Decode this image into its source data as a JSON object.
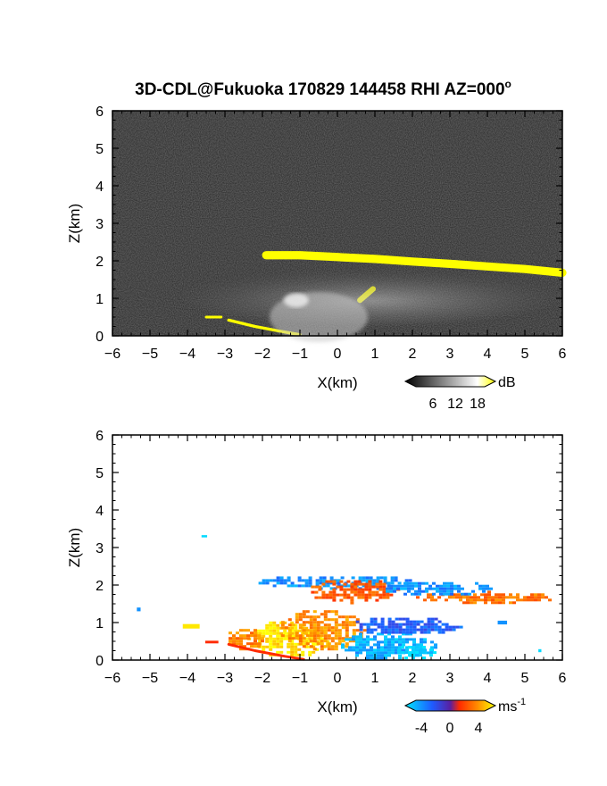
{
  "title": "3D-CDL@Fukuoka 170829 144458 RHI AZ=000",
  "title_superscript": "o",
  "colors": {
    "panel1_background": "#202020",
    "highlight_yellow": "#ffff00",
    "velocity_blue": "#1e5bff",
    "velocity_red": "#ff2a00",
    "velocity_orange": "#ff8c00",
    "velocity_cyan": "#00e5ff"
  },
  "chart_data": [
    {
      "type": "heatmap",
      "name_hint": "intensity",
      "xlabel": "X(km)",
      "ylabel": "Z(km)",
      "xlim": [
        -6,
        6
      ],
      "ylim": [
        0,
        6
      ],
      "xticks": [
        "-6",
        "-5",
        "-4",
        "-3",
        "-2",
        "-1",
        "0",
        "1",
        "2",
        "3",
        "4",
        "5",
        "6"
      ],
      "yticks": [
        "0",
        "1",
        "2",
        "3",
        "4",
        "5",
        "6"
      ],
      "colorbar": {
        "unit": "dB",
        "ticks": [
          "6",
          "12",
          "18"
        ],
        "range": [
          0,
          20
        ],
        "colors": [
          "#000000",
          "#ffffff",
          "#ffff00"
        ]
      },
      "features": [
        {
          "kind": "band",
          "color": "#ffff00",
          "x": [
            -1.9,
            -1,
            0,
            1,
            2,
            3,
            4,
            5,
            6
          ],
          "z": [
            2.15,
            2.15,
            2.1,
            2.05,
            1.98,
            1.92,
            1.85,
            1.78,
            1.68
          ],
          "thickness": 0.22
        },
        {
          "kind": "band",
          "color": "#ffff00",
          "x": [
            0.6,
            0.95
          ],
          "z": [
            0.95,
            1.25
          ],
          "thickness": 0.15
        },
        {
          "kind": "band",
          "color": "#ffff00",
          "x": [
            -3.5,
            -3.1
          ],
          "z": [
            0.5,
            0.5
          ],
          "thickness": 0.07
        },
        {
          "kind": "band",
          "color": "#ffff00",
          "x": [
            -2.9,
            -2.2,
            -1.5,
            -1.0
          ],
          "z": [
            0.42,
            0.25,
            0.12,
            0.03
          ],
          "thickness": 0.08
        },
        {
          "kind": "haze",
          "x": [
            -4.2,
            6
          ],
          "z": [
            0.3,
            1.9
          ],
          "peak_x": -0.5,
          "peak_z": 0.5
        }
      ]
    },
    {
      "type": "heatmap",
      "name_hint": "velocity",
      "xlabel": "X(km)",
      "ylabel": "Z(km)",
      "xlim": [
        -6,
        6
      ],
      "ylim": [
        0,
        6
      ],
      "xticks": [
        "-6",
        "-5",
        "-4",
        "-3",
        "-2",
        "-1",
        "0",
        "1",
        "2",
        "3",
        "4",
        "5",
        "6"
      ],
      "yticks": [
        "0",
        "1",
        "2",
        "3",
        "4",
        "5",
        "6"
      ],
      "colorbar": {
        "unit": "ms",
        "unit_exponent": "-1",
        "ticks": [
          "-4",
          "0",
          "4"
        ],
        "range": [
          -5,
          5
        ],
        "colors": [
          "#00e5ff",
          "#1e5bff",
          "#ff2a00",
          "#ff8c00",
          "#ffff00"
        ]
      },
      "features": [
        {
          "kind": "blob",
          "value": -3.5,
          "x": [
            -2.2,
            2.2
          ],
          "z": [
            1.9,
            2.3
          ]
        },
        {
          "kind": "blob",
          "value": 2.0,
          "x": [
            -0.8,
            1.6
          ],
          "z": [
            1.55,
            2.2
          ]
        },
        {
          "kind": "blob",
          "value": 2.5,
          "x": [
            2.0,
            6.0
          ],
          "z": [
            1.55,
            1.85
          ]
        },
        {
          "kind": "blob",
          "value": -3.5,
          "x": [
            1.0,
            4.2
          ],
          "z": [
            1.75,
            2.15
          ]
        },
        {
          "kind": "blob",
          "value": 4.5,
          "x": [
            -2.4,
            -0.2
          ],
          "z": [
            0.1,
            1.1
          ]
        },
        {
          "kind": "blob",
          "value": 3.0,
          "x": [
            -1.6,
            0.8
          ],
          "z": [
            0.3,
            1.4
          ]
        },
        {
          "kind": "blob",
          "value": -4.0,
          "x": [
            0.0,
            2.6
          ],
          "z": [
            0.05,
            0.8
          ]
        },
        {
          "kind": "blob",
          "value": -2.5,
          "x": [
            0.3,
            3.3
          ],
          "z": [
            0.7,
            1.2
          ]
        },
        {
          "kind": "blob",
          "value": -4.8,
          "x": [
            1.5,
            2.6
          ],
          "z": [
            0.05,
            0.45
          ]
        },
        {
          "kind": "blob",
          "value": 2.8,
          "x": [
            -3.0,
            -2.0
          ],
          "z": [
            0.3,
            0.9
          ]
        },
        {
          "kind": "point",
          "value": 4.6,
          "x": -3.9,
          "z": 0.9,
          "w": 0.45,
          "h": 0.12
        },
        {
          "kind": "point",
          "value": -4.8,
          "x": -3.55,
          "z": 3.3,
          "w": 0.15,
          "h": 0.06
        },
        {
          "kind": "point",
          "value": -3.5,
          "x": -5.3,
          "z": 1.35,
          "w": 0.1,
          "h": 0.1
        },
        {
          "kind": "point",
          "value": 1.0,
          "x": -3.35,
          "z": 0.48,
          "w": 0.35,
          "h": 0.07
        },
        {
          "kind": "point",
          "value": -3.5,
          "x": 4.4,
          "z": 1.0,
          "w": 0.25,
          "h": 0.1
        },
        {
          "kind": "point",
          "value": -4.8,
          "x": 5.4,
          "z": 0.25,
          "w": 0.08,
          "h": 0.08
        },
        {
          "kind": "band",
          "value": 1.0,
          "x": [
            -2.9,
            -2.2,
            -1.4,
            -0.9
          ],
          "z": [
            0.42,
            0.25,
            0.1,
            0.02
          ],
          "thickness": 0.07
        }
      ]
    }
  ]
}
